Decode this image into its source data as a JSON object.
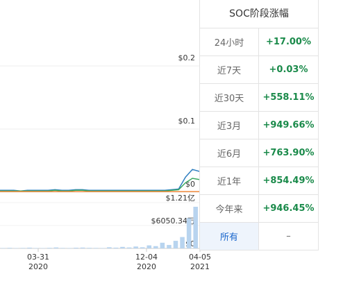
{
  "chart": {
    "price_ticks": [
      {
        "value": 0.2,
        "label": "$0.2"
      },
      {
        "value": 0.1,
        "label": "$0.1"
      },
      {
        "value": 0,
        "label": "$0"
      }
    ],
    "volume_ticks": [
      {
        "value": 121000000,
        "label": "$1.21亿"
      },
      {
        "value": 60503400,
        "label": "$6050.34万"
      },
      {
        "value": 0,
        "label": "$0"
      }
    ],
    "x_ticks": [
      {
        "date": "03-31",
        "year": "2020"
      },
      {
        "date": "12-04",
        "year": "2020"
      },
      {
        "date": "04-05",
        "year": "2021"
      }
    ],
    "series": [
      {
        "color": "#2f7fc0",
        "values": [
          0.003,
          0.003,
          0.003,
          0.002,
          0.003,
          0.003,
          0.003,
          0.003,
          0.004,
          0.003,
          0.003,
          0.004,
          0.004,
          0.003,
          0.003,
          0.003,
          0.003,
          0.003,
          0.003,
          0.003,
          0.003,
          0.003,
          0.003,
          0.003,
          0.003,
          0.004,
          0.005,
          0.024,
          0.036,
          0.033
        ]
      },
      {
        "color": "#3aa860",
        "values": [
          0.002,
          0.002,
          0.002,
          0.002,
          0.002,
          0.002,
          0.002,
          0.002,
          0.003,
          0.002,
          0.002,
          0.003,
          0.003,
          0.002,
          0.002,
          0.002,
          0.002,
          0.002,
          0.002,
          0.002,
          0.002,
          0.002,
          0.002,
          0.002,
          0.002,
          0.003,
          0.004,
          0.015,
          0.022,
          0.02
        ]
      },
      {
        "color": "#f08a3a",
        "values": [
          0.001,
          0.001,
          0.001,
          0.001,
          0.001,
          0.001,
          0.001,
          0.001,
          0.001,
          0.001,
          0.001,
          0.001,
          0.001,
          0.001,
          0.001,
          0.001,
          0.001,
          0.001,
          0.001,
          0.001,
          0.001,
          0.001,
          0.001,
          0.001,
          0.001,
          0.001,
          0.001,
          0.001,
          0.001,
          0.001
        ]
      }
    ],
    "volume": [
      1000000,
      1500000,
      800000,
      1200000,
      2000000,
      1000000,
      900000,
      1500000,
      2500000,
      1200000,
      1000000,
      1800000,
      2200000,
      1500000,
      1200000,
      1000000,
      3000000,
      2000000,
      4000000,
      2500000,
      5000000,
      3000000,
      8000000,
      6000000,
      15000000,
      9000000,
      20000000,
      30000000,
      80000000,
      110000000
    ]
  },
  "table": {
    "title": "SOC阶段涨幅",
    "rows": [
      [
        "24小时",
        "+17.00%"
      ],
      [
        "近7天",
        "+0.03%"
      ],
      [
        "近30天",
        "+558.11%"
      ],
      [
        "近3月",
        "+949.66%"
      ],
      [
        "近6月",
        "+763.90%"
      ],
      [
        "近1年",
        "+854.49%"
      ],
      [
        "今年来",
        "+946.45%"
      ],
      [
        "所有",
        "–"
      ]
    ]
  }
}
